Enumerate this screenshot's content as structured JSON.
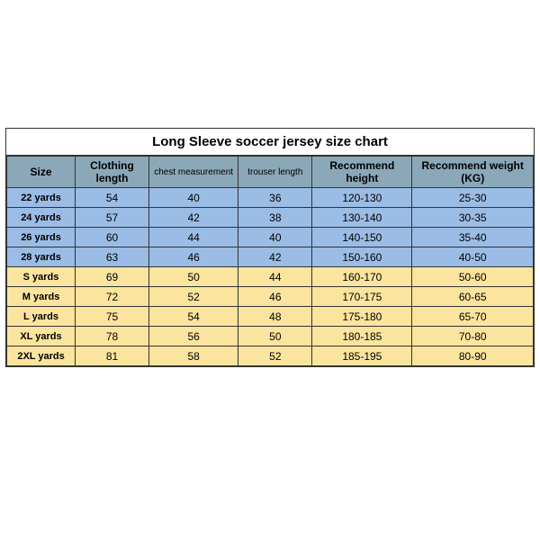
{
  "size_chart": {
    "type": "table",
    "title": "Long Sleeve soccer jersey size chart",
    "title_fontsize": 15,
    "background_color": "#ffffff",
    "border_color": "#333333",
    "header_bg": "#8ba8b9",
    "blue_row_bg": "#9bbce4",
    "yellow_row_bg": "#fbe49d",
    "cell_fontsize": 12,
    "size_cell_fontsize": 11,
    "columns": [
      {
        "key": "size",
        "label": "Size",
        "width_pct": 13,
        "small": false
      },
      {
        "key": "cloth",
        "label": "Clothing length",
        "width_pct": 14,
        "small": false
      },
      {
        "key": "chest",
        "label": "chest measurement",
        "width_pct": 17,
        "small": true
      },
      {
        "key": "trous",
        "label": "trouser length",
        "width_pct": 14,
        "small": true
      },
      {
        "key": "height",
        "label": "Recommend height",
        "width_pct": 19,
        "small": false
      },
      {
        "key": "weight",
        "label": "Recommend weight (KG)",
        "width_pct": 23,
        "small": false
      }
    ],
    "rows": [
      {
        "color_group": "blue",
        "cells": [
          "22 yards",
          "54",
          "40",
          "36",
          "120-130",
          "25-30"
        ]
      },
      {
        "color_group": "blue",
        "cells": [
          "24 yards",
          "57",
          "42",
          "38",
          "130-140",
          "30-35"
        ]
      },
      {
        "color_group": "blue",
        "cells": [
          "26 yards",
          "60",
          "44",
          "40",
          "140-150",
          "35-40"
        ]
      },
      {
        "color_group": "blue",
        "cells": [
          "28 yards",
          "63",
          "46",
          "42",
          "150-160",
          "40-50"
        ]
      },
      {
        "color_group": "yellow",
        "cells": [
          "S yards",
          "69",
          "50",
          "44",
          "160-170",
          "50-60"
        ]
      },
      {
        "color_group": "yellow",
        "cells": [
          "M yards",
          "72",
          "52",
          "46",
          "170-175",
          "60-65"
        ]
      },
      {
        "color_group": "yellow",
        "cells": [
          "L yards",
          "75",
          "54",
          "48",
          "175-180",
          "65-70"
        ]
      },
      {
        "color_group": "yellow",
        "cells": [
          "XL yards",
          "78",
          "56",
          "50",
          "180-185",
          "70-80"
        ]
      },
      {
        "color_group": "yellow",
        "cells": [
          "2XL yards",
          "81",
          "58",
          "52",
          "185-195",
          "80-90"
        ]
      }
    ]
  }
}
